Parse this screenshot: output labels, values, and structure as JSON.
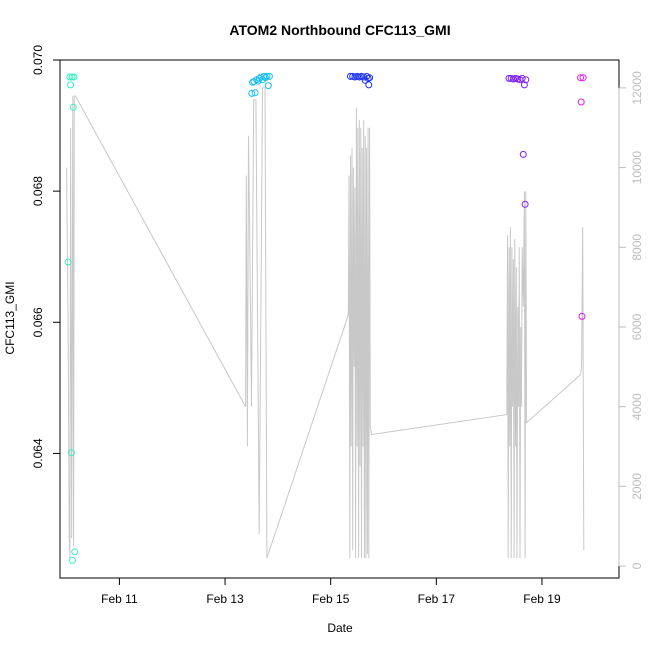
{
  "chart_data": {
    "type": "scatter",
    "title": "ATOM2 Northbound CFC113_GMI",
    "xlabel": "Date",
    "ylabel": "CFC113_GMI",
    "y2label": "",
    "xlim": [
      "2018-02-09T21:00",
      "2018-02-20T11:00"
    ],
    "ylim": [
      0.0621,
      0.07
    ],
    "y2lim": [
      -300,
      12700
    ],
    "x_ticks": [
      {
        "date": "2018-02-11",
        "label": "Feb 11"
      },
      {
        "date": "2018-02-13",
        "label": "Feb 13"
      },
      {
        "date": "2018-02-15",
        "label": "Feb 15"
      },
      {
        "date": "2018-02-17",
        "label": "Feb 17"
      },
      {
        "date": "2018-02-19",
        "label": "Feb 19"
      }
    ],
    "y_ticks": [
      0.064,
      0.066,
      0.068,
      0.07
    ],
    "y_tick_labels": [
      "0.064",
      "0.066",
      "0.068",
      "0.070"
    ],
    "y2_ticks": [
      0,
      2000,
      4000,
      6000,
      8000,
      10000,
      12000
    ],
    "y2_tick_labels": [
      "0",
      "2000",
      "4000",
      "6000",
      "8000",
      "10000",
      "12000"
    ],
    "grid": false,
    "legend": "none",
    "colors": {
      "altitude_line": "#c8c8c8",
      "right_axis": "#bdbdbd",
      "axis": "#000000"
    },
    "series": [
      {
        "kind": "points",
        "color": "#33f2bf",
        "points": [
          [
            "2018-02-10T00:40",
            0.06692
          ],
          [
            "2018-02-10T01:30",
            0.06974
          ],
          [
            "2018-02-10T01:50",
            0.06962
          ],
          [
            "2018-02-10T02:10",
            0.06401
          ],
          [
            "2018-02-10T02:30",
            0.06974
          ],
          [
            "2018-02-10T02:40",
            0.06237
          ],
          [
            "2018-02-10T03:00",
            0.06928
          ],
          [
            "2018-02-10T03:20",
            0.06974
          ],
          [
            "2018-02-10T03:40",
            0.0625
          ]
        ]
      },
      {
        "kind": "points",
        "color": "#19bff2",
        "points": [
          [
            "2018-02-13T12:10",
            0.06949
          ],
          [
            "2018-02-13T12:30",
            0.06966
          ],
          [
            "2018-02-13T13:10",
            0.06967
          ],
          [
            "2018-02-13T13:40",
            0.0695
          ],
          [
            "2018-02-13T14:20",
            0.0697
          ],
          [
            "2018-02-13T15:00",
            0.06968
          ],
          [
            "2018-02-13T15:40",
            0.06972
          ],
          [
            "2018-02-13T16:20",
            0.06974
          ],
          [
            "2018-02-13T17:00",
            0.0697
          ],
          [
            "2018-02-13T17:40",
            0.06975
          ],
          [
            "2018-02-13T18:20",
            0.06973
          ],
          [
            "2018-02-13T19:00",
            0.06975
          ],
          [
            "2018-02-13T19:40",
            0.06961
          ],
          [
            "2018-02-13T20:10",
            0.06975
          ]
        ]
      },
      {
        "kind": "points",
        "color": "#1f33f2",
        "points": [
          [
            "2018-02-15T09:00",
            0.06975
          ],
          [
            "2018-02-15T10:00",
            0.06975
          ],
          [
            "2018-02-15T11:00",
            0.06974
          ],
          [
            "2018-02-15T12:00",
            0.06975
          ],
          [
            "2018-02-15T13:00",
            0.06974
          ],
          [
            "2018-02-15T14:00",
            0.06975
          ],
          [
            "2018-02-15T15:00",
            0.06974
          ],
          [
            "2018-02-15T15:40",
            0.06969
          ],
          [
            "2018-02-15T16:20",
            0.06975
          ],
          [
            "2018-02-15T17:00",
            0.06972
          ],
          [
            "2018-02-15T17:20",
            0.06962
          ],
          [
            "2018-02-15T17:40",
            0.06973
          ]
        ]
      },
      {
        "kind": "points",
        "color": "#7f1ff2",
        "points": [
          [
            "2018-02-18T09:00",
            0.06972
          ],
          [
            "2018-02-18T10:00",
            0.06972
          ],
          [
            "2018-02-18T11:00",
            0.06971
          ],
          [
            "2018-02-18T12:00",
            0.06972
          ],
          [
            "2018-02-18T13:00",
            0.06971
          ],
          [
            "2018-02-18T14:00",
            0.0697
          ],
          [
            "2018-02-18T15:00",
            0.06972
          ],
          [
            "2018-02-18T15:30",
            0.06856
          ],
          [
            "2018-02-18T16:00",
            0.06962
          ],
          [
            "2018-02-18T16:20",
            0.0678
          ],
          [
            "2018-02-18T16:40",
            0.0697
          ]
        ]
      },
      {
        "kind": "points",
        "color": "#d91fe6",
        "points": [
          [
            "2018-02-19T17:30",
            0.06973
          ],
          [
            "2018-02-19T17:50",
            0.06936
          ],
          [
            "2018-02-19T18:10",
            0.06609
          ],
          [
            "2018-02-19T18:40",
            0.06973
          ]
        ]
      },
      {
        "kind": "altitude_line",
        "axis": "right",
        "color": "#c8c8c8",
        "points": [
          [
            "2018-02-10T00:00",
            10000
          ],
          [
            "2018-02-10T00:40",
            6000
          ],
          [
            "2018-02-10T01:10",
            700
          ],
          [
            "2018-02-10T01:30",
            200
          ],
          [
            "2018-02-10T01:50",
            11000
          ],
          [
            "2018-02-10T02:20",
            700
          ],
          [
            "2018-02-10T02:50",
            11800
          ],
          [
            "2018-02-10T03:10",
            500
          ],
          [
            "2018-02-10T03:30",
            11800
          ],
          [
            "2018-02-10T04:00",
            11800
          ],
          [
            "2018-02-13T09:20",
            4000
          ],
          [
            "2018-02-13T09:40",
            9800
          ],
          [
            "2018-02-13T10:10",
            3000
          ],
          [
            "2018-02-13T10:40",
            10800
          ],
          [
            "2018-02-13T11:10",
            8500
          ],
          [
            "2018-02-13T12:00",
            4000
          ],
          [
            "2018-02-13T13:00",
            11700
          ],
          [
            "2018-02-13T14:00",
            11700
          ],
          [
            "2018-02-13T15:30",
            800
          ],
          [
            "2018-02-13T17:00",
            12000
          ],
          [
            "2018-02-13T18:10",
            12000
          ],
          [
            "2018-02-13T19:00",
            200
          ],
          [
            "2018-02-15T08:00",
            6300
          ],
          [
            "2018-02-15T08:20",
            9800
          ],
          [
            "2018-02-15T08:40",
            200
          ],
          [
            "2018-02-15T09:00",
            10300
          ],
          [
            "2018-02-15T09:20",
            3000
          ],
          [
            "2018-02-15T09:40",
            10500
          ],
          [
            "2018-02-15T10:00",
            400
          ],
          [
            "2018-02-15T10:20",
            10000
          ],
          [
            "2018-02-15T10:40",
            5000
          ],
          [
            "2018-02-15T11:00",
            9500
          ],
          [
            "2018-02-15T11:20",
            200
          ],
          [
            "2018-02-15T11:40",
            11500
          ],
          [
            "2018-02-15T12:00",
            3000
          ],
          [
            "2018-02-15T12:20",
            11000
          ],
          [
            "2018-02-15T12:40",
            200
          ],
          [
            "2018-02-15T13:00",
            11200
          ],
          [
            "2018-02-15T13:20",
            2500
          ],
          [
            "2018-02-15T13:40",
            11000
          ],
          [
            "2018-02-15T14:00",
            200
          ],
          [
            "2018-02-15T14:20",
            10500
          ],
          [
            "2018-02-15T14:40",
            3000
          ],
          [
            "2018-02-15T15:00",
            11200
          ],
          [
            "2018-02-15T15:20",
            200
          ],
          [
            "2018-02-15T15:40",
            10800
          ],
          [
            "2018-02-15T16:00",
            200
          ],
          [
            "2018-02-15T16:20",
            10500
          ],
          [
            "2018-02-15T16:40",
            300
          ],
          [
            "2018-02-15T17:00",
            11000
          ],
          [
            "2018-02-15T17:20",
            200
          ],
          [
            "2018-02-15T17:40",
            11000
          ],
          [
            "2018-02-15T18:00",
            3500
          ],
          [
            "2018-02-15T18:30",
            3300
          ],
          [
            "2018-02-18T08:00",
            3800
          ],
          [
            "2018-02-18T08:20",
            8300
          ],
          [
            "2018-02-18T08:40",
            200
          ],
          [
            "2018-02-18T09:00",
            8000
          ],
          [
            "2018-02-18T09:20",
            3000
          ],
          [
            "2018-02-18T09:40",
            8500
          ],
          [
            "2018-02-18T10:00",
            200
          ],
          [
            "2018-02-18T10:20",
            8000
          ],
          [
            "2018-02-18T10:40",
            4000
          ],
          [
            "2018-02-18T11:00",
            7700
          ],
          [
            "2018-02-18T11:20",
            200
          ],
          [
            "2018-02-18T11:40",
            8200
          ],
          [
            "2018-02-18T12:00",
            3000
          ],
          [
            "2018-02-18T12:20",
            7500
          ],
          [
            "2018-02-18T12:40",
            200
          ],
          [
            "2018-02-18T13:00",
            6500
          ],
          [
            "2018-02-18T13:20",
            4000
          ],
          [
            "2018-02-18T13:40",
            8000
          ],
          [
            "2018-02-18T14:00",
            200
          ],
          [
            "2018-02-18T14:20",
            6000
          ],
          [
            "2018-02-18T14:40",
            4000
          ],
          [
            "2018-02-18T15:00",
            8000
          ],
          [
            "2018-02-18T15:30",
            6500
          ],
          [
            "2018-02-18T16:00",
            9400
          ],
          [
            "2018-02-18T16:20",
            200
          ],
          [
            "2018-02-18T16:40",
            9400
          ],
          [
            "2018-02-18T17:00",
            3600
          ],
          [
            "2018-02-19T17:30",
            4800
          ],
          [
            "2018-02-19T18:00",
            5000
          ],
          [
            "2018-02-19T18:30",
            8500
          ],
          [
            "2018-02-19T19:00",
            400
          ]
        ]
      }
    ]
  }
}
